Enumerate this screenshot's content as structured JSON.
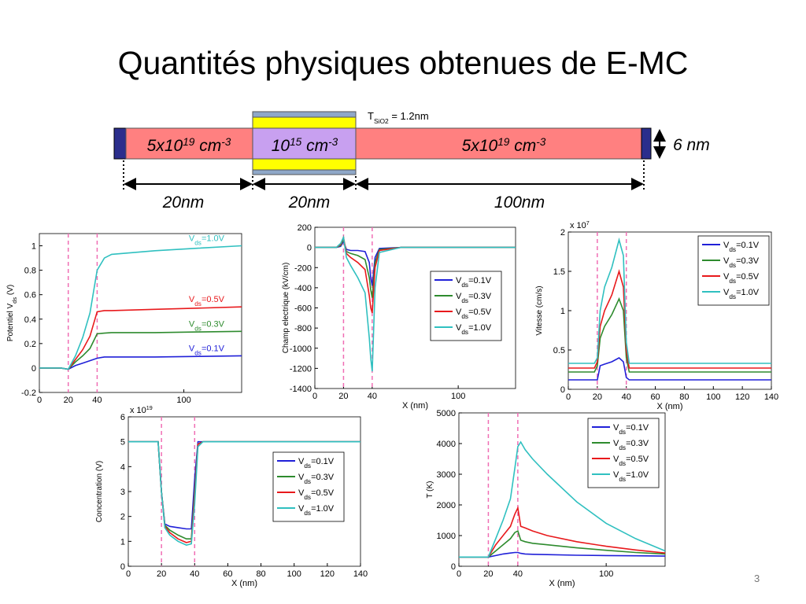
{
  "slide": {
    "title": "Quantités physiques obtenues de E-MC",
    "page": "3"
  },
  "device": {
    "doping": [
      [
        "5x10",
        "19",
        " cm",
        "-3"
      ],
      [
        "10",
        "15",
        " cm",
        "-3"
      ],
      [
        "5x10",
        "19",
        " cm",
        "-3"
      ]
    ],
    "lengths": [
      "20nm",
      "20nm",
      "100nm"
    ],
    "thickness": "6 nm",
    "oxide": [
      "T",
      "SiO2",
      " = 1.2nm"
    ]
  },
  "chart_data": [
    {
      "type": "line",
      "y_label": "Potentiel Vds (V)",
      "x": [
        0,
        15,
        20,
        25,
        30,
        35,
        40,
        45,
        50,
        80,
        110,
        140
      ],
      "xlim": [
        0,
        140
      ],
      "ylim": [
        -0.2,
        1.1
      ],
      "xticks": [
        0,
        20,
        40,
        100
      ],
      "yticks": [
        -0.2,
        0,
        0.2,
        0.4,
        0.6,
        0.8,
        1
      ],
      "vlines": [
        20,
        40
      ],
      "legend": "inline",
      "series": [
        {
          "name": "Vds=0.1V",
          "color": "#2020d8",
          "values": [
            0,
            0,
            -0.01,
            0.02,
            0.04,
            0.06,
            0.08,
            0.09,
            0.09,
            0.09,
            0.095,
            0.1
          ]
        },
        {
          "name": "Vds=0.3V",
          "color": "#2e8b2e",
          "values": [
            0,
            0,
            -0.01,
            0.05,
            0.1,
            0.16,
            0.28,
            0.285,
            0.29,
            0.29,
            0.295,
            0.3
          ]
        },
        {
          "name": "Vds=0.5V",
          "color": "#e8191c",
          "values": [
            0,
            0,
            -0.01,
            0.07,
            0.15,
            0.26,
            0.46,
            0.47,
            0.47,
            0.48,
            0.49,
            0.5
          ]
        },
        {
          "name": "Vds=1.0V",
          "color": "#30c0c0",
          "values": [
            0,
            0,
            -0.01,
            0.1,
            0.25,
            0.45,
            0.8,
            0.9,
            0.93,
            0.96,
            0.98,
            1.0
          ]
        }
      ]
    },
    {
      "type": "line",
      "y_label": "Champ electrique (kV/cm)",
      "x_label": "X (nm)",
      "x": [
        0,
        15,
        18,
        20,
        22,
        25,
        30,
        35,
        38,
        39,
        40,
        42,
        45,
        60,
        140
      ],
      "xlim": [
        0,
        140
      ],
      "ylim": [
        -1400,
        200
      ],
      "xticks": [
        0,
        20,
        40,
        100
      ],
      "yticks": [
        -1400,
        -1200,
        -1000,
        -800,
        -600,
        -400,
        -200,
        0,
        200
      ],
      "vlines": [
        20,
        40
      ],
      "legend": "right",
      "series": [
        {
          "name": "Vds=0.1V",
          "color": "#2020d8",
          "values": [
            0,
            0,
            10,
            60,
            -20,
            -30,
            -30,
            -40,
            -150,
            -300,
            -380,
            -100,
            -10,
            0,
            0
          ]
        },
        {
          "name": "Vds=0.3V",
          "color": "#2e8b2e",
          "values": [
            0,
            0,
            20,
            80,
            -40,
            -60,
            -80,
            -120,
            -300,
            -420,
            -500,
            -150,
            -20,
            0,
            0
          ]
        },
        {
          "name": "Vds=0.5V",
          "color": "#e8191c",
          "values": [
            0,
            0,
            30,
            100,
            -60,
            -100,
            -150,
            -220,
            -480,
            -600,
            -650,
            -200,
            -30,
            0,
            0
          ]
        },
        {
          "name": "Vds=1.0V",
          "color": "#30c0c0",
          "values": [
            0,
            0,
            40,
            100,
            -100,
            -180,
            -300,
            -450,
            -900,
            -1100,
            -1230,
            -400,
            -50,
            0,
            0
          ]
        }
      ]
    },
    {
      "type": "line",
      "y_label": "Vitesse (cm/s)",
      "x_label": "X (nm)",
      "scale": [
        "x 10",
        "7"
      ],
      "x": [
        0,
        18,
        20,
        22,
        25,
        30,
        35,
        38,
        40,
        42,
        45,
        140
      ],
      "xlim": [
        0,
        140
      ],
      "ylim": [
        0,
        2
      ],
      "xticks": [
        0,
        20,
        40,
        60,
        80,
        100,
        120,
        140
      ],
      "yticks": [
        0,
        0.5,
        1,
        1.5,
        2
      ],
      "vlines": [
        20,
        40
      ],
      "legend": "upper right",
      "series": [
        {
          "name": "Vds=0.1V",
          "color": "#2020d8",
          "values": [
            0.12,
            0.12,
            0.12,
            0.3,
            0.32,
            0.35,
            0.4,
            0.35,
            0.15,
            0.12,
            0.12,
            0.12
          ]
        },
        {
          "name": "Vds=0.3V",
          "color": "#2e8b2e",
          "values": [
            0.22,
            0.22,
            0.3,
            0.65,
            0.8,
            0.95,
            1.15,
            1.0,
            0.4,
            0.22,
            0.22,
            0.22
          ]
        },
        {
          "name": "Vds=0.5V",
          "color": "#e8191c",
          "values": [
            0.27,
            0.27,
            0.35,
            0.8,
            1.0,
            1.2,
            1.5,
            1.3,
            0.5,
            0.27,
            0.27,
            0.27
          ]
        },
        {
          "name": "Vds=1.0V",
          "color": "#30c0c0",
          "values": [
            0.33,
            0.33,
            0.4,
            1.0,
            1.3,
            1.55,
            1.9,
            1.7,
            0.6,
            0.33,
            0.33,
            0.33
          ]
        }
      ]
    },
    {
      "type": "line",
      "y_label": "Concentration (V)",
      "x_label": "X (nm)",
      "scale": [
        "x 10",
        "19"
      ],
      "x": [
        0,
        18,
        20,
        22,
        25,
        30,
        35,
        38,
        40,
        42,
        45,
        140
      ],
      "xlim": [
        0,
        140
      ],
      "ylim": [
        0,
        6
      ],
      "xticks": [
        0,
        20,
        40,
        60,
        80,
        100,
        120,
        140
      ],
      "yticks": [
        0,
        1,
        2,
        3,
        4,
        5,
        6
      ],
      "vlines": [
        20,
        40
      ],
      "legend": "right",
      "series": [
        {
          "name": "Vds=0.1V",
          "color": "#2020d8",
          "values": [
            5,
            5,
            3,
            1.7,
            1.6,
            1.55,
            1.5,
            1.5,
            3.5,
            5,
            5,
            5
          ]
        },
        {
          "name": "Vds=0.3V",
          "color": "#2e8b2e",
          "values": [
            5,
            5,
            3,
            1.65,
            1.45,
            1.25,
            1.1,
            1.1,
            3,
            4.9,
            5,
            5
          ]
        },
        {
          "name": "Vds=0.5V",
          "color": "#e8191c",
          "values": [
            5,
            5,
            3,
            1.6,
            1.35,
            1.1,
            0.95,
            1.0,
            2.8,
            4.9,
            5,
            5
          ]
        },
        {
          "name": "Vds=1.0V",
          "color": "#30c0c0",
          "values": [
            5,
            5,
            3,
            1.55,
            1.25,
            1.0,
            0.85,
            0.9,
            2.5,
            4.8,
            5,
            5
          ]
        }
      ]
    },
    {
      "type": "line",
      "y_label": "T (K)",
      "x_label": "X (nm)",
      "x": [
        0,
        15,
        20,
        25,
        30,
        35,
        38,
        40,
        42,
        45,
        50,
        60,
        80,
        100,
        120,
        140
      ],
      "xlim": [
        0,
        140
      ],
      "ylim": [
        0,
        5000
      ],
      "xticks": [
        0,
        20,
        40,
        100
      ],
      "yticks": [
        0,
        1000,
        2000,
        3000,
        4000,
        5000
      ],
      "vlines": [
        20,
        40
      ],
      "legend": "upper right",
      "series": [
        {
          "name": "Vds=0.1V",
          "color": "#2020d8",
          "values": [
            300,
            300,
            300,
            350,
            400,
            430,
            450,
            450,
            420,
            400,
            390,
            380,
            360,
            350,
            340,
            330
          ]
        },
        {
          "name": "Vds=0.3V",
          "color": "#2e8b2e",
          "values": [
            300,
            300,
            300,
            500,
            700,
            900,
            1100,
            1150,
            850,
            800,
            750,
            700,
            600,
            520,
            450,
            400
          ]
        },
        {
          "name": "Vds=0.5V",
          "color": "#e8191c",
          "values": [
            300,
            300,
            300,
            700,
            1000,
            1300,
            1700,
            1900,
            1300,
            1250,
            1150,
            1000,
            800,
            650,
            530,
            430
          ]
        },
        {
          "name": "Vds=1.0V",
          "color": "#30c0c0",
          "values": [
            300,
            300,
            300,
            900,
            1500,
            2200,
            3200,
            3900,
            4050,
            3800,
            3500,
            3000,
            2100,
            1400,
            900,
            500
          ]
        }
      ]
    }
  ]
}
